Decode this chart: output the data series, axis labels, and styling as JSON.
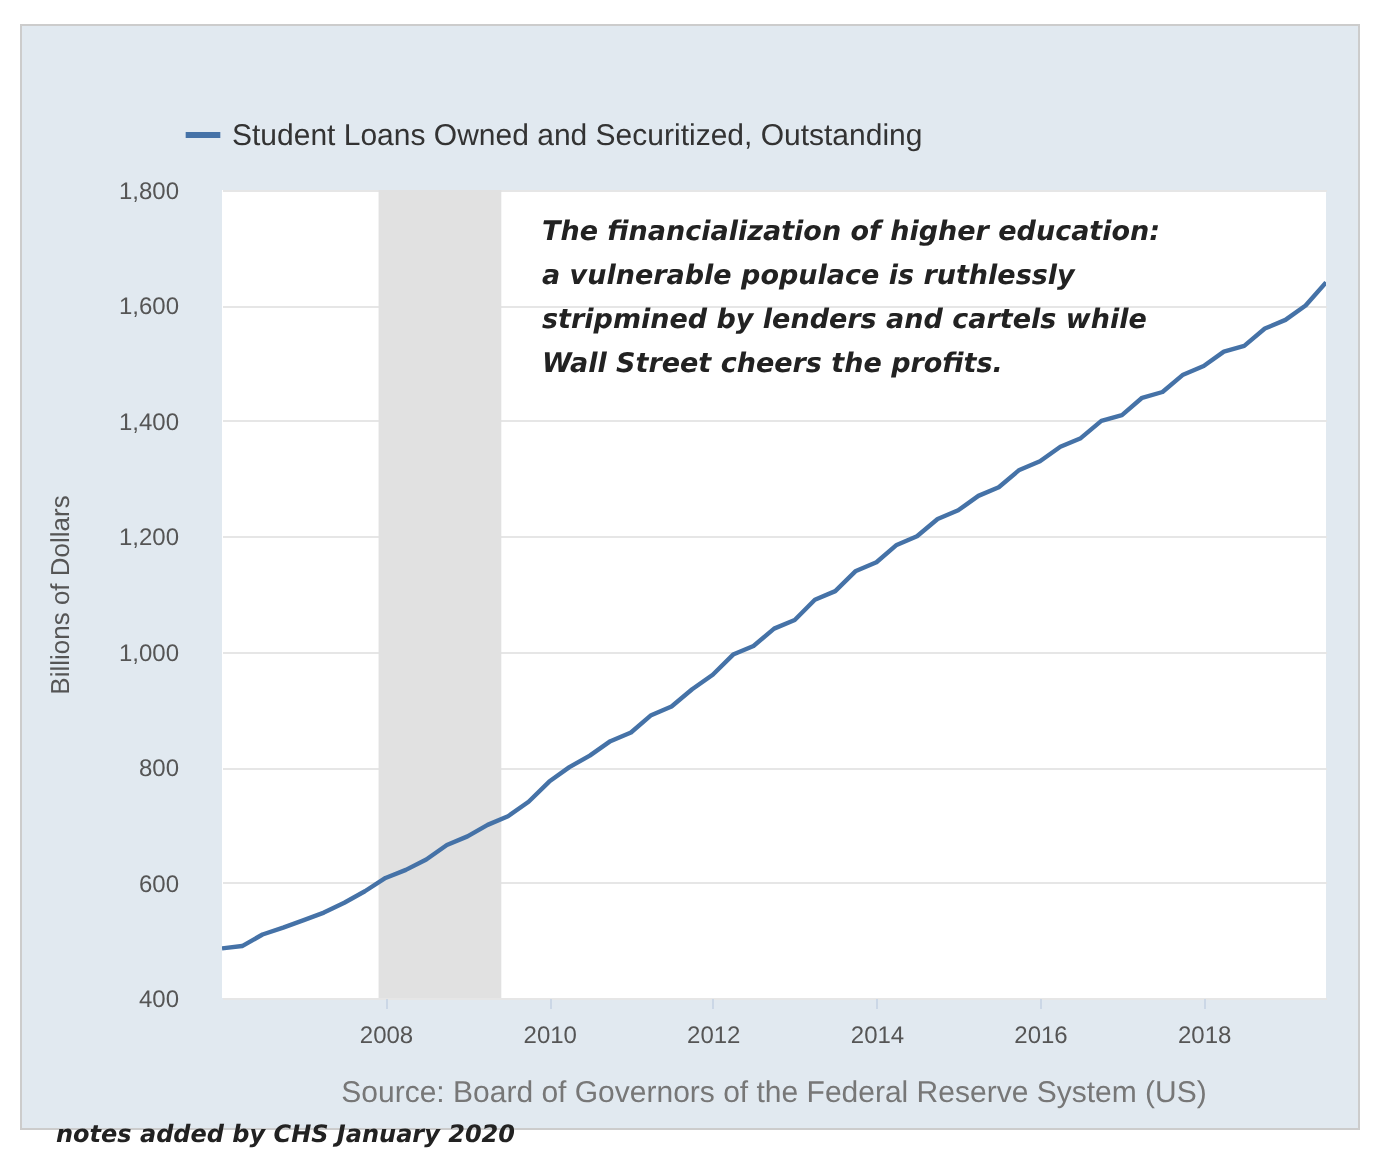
{
  "chart_data": {
    "type": "line",
    "ylabel": "Billions of Dollars",
    "x": [
      "2006-01",
      "2006-04",
      "2006-07",
      "2006-10",
      "2007-01",
      "2007-04",
      "2007-07",
      "2007-10",
      "2008-01",
      "2008-04",
      "2008-07",
      "2008-10",
      "2009-01",
      "2009-04",
      "2009-07",
      "2009-10",
      "2010-01",
      "2010-04",
      "2010-07",
      "2010-10",
      "2011-01",
      "2011-04",
      "2011-07",
      "2011-10",
      "2012-01",
      "2012-04",
      "2012-07",
      "2012-10",
      "2013-01",
      "2013-04",
      "2013-07",
      "2013-10",
      "2014-01",
      "2014-04",
      "2014-07",
      "2014-10",
      "2015-01",
      "2015-04",
      "2015-07",
      "2015-10",
      "2016-01",
      "2016-04",
      "2016-07",
      "2016-10",
      "2017-01",
      "2017-04",
      "2017-07",
      "2017-10",
      "2018-01",
      "2018-04",
      "2018-07",
      "2018-10",
      "2019-01",
      "2019-04",
      "2019-07"
    ],
    "series": [
      {
        "name": "Student Loans Owned and Securitized, Outstanding",
        "color": "#4572a7",
        "values": [
          486,
          490,
          510,
          522,
          535,
          548,
          565,
          585,
          608,
          622,
          640,
          665,
          680,
          700,
          715,
          740,
          775,
          800,
          820,
          845,
          860,
          890,
          905,
          935,
          960,
          995,
          1010,
          1040,
          1055,
          1090,
          1105,
          1140,
          1155,
          1185,
          1200,
          1230,
          1245,
          1270,
          1285,
          1315,
          1330,
          1355,
          1370,
          1400,
          1410,
          1440,
          1450,
          1480,
          1495,
          1520,
          1530,
          1560,
          1575,
          1600,
          1640
        ]
      }
    ],
    "xlim": [
      "2006-01",
      "2019-07"
    ],
    "xticks": [
      "2008",
      "2010",
      "2012",
      "2014",
      "2016",
      "2018"
    ],
    "ylim": [
      400,
      1800
    ],
    "yticks": [
      400,
      600,
      800,
      {
        "value": 1000,
        "label": "1,000"
      },
      {
        "value": 1200,
        "label": "1,200"
      },
      {
        "value": 1400,
        "label": "1,400"
      },
      {
        "value": 1600,
        "label": "1,600"
      },
      {
        "value": 1800,
        "label": "1,800"
      }
    ],
    "grid": "y",
    "legend": "top left",
    "bands": [
      {
        "axis": "x",
        "from": "2007-12",
        "to": "2009-06",
        "color": "#e1e1e1"
      }
    ],
    "annotations": [
      "The financialization of higher education:\na vulnerable populace is ruthlessly\nstripmined by lenders and cartels while\nWall Street cheers the profits.",
      "Source: Board of Governors of the Federal Reserve System (US)",
      "notes added by CHS January 2020"
    ]
  }
}
